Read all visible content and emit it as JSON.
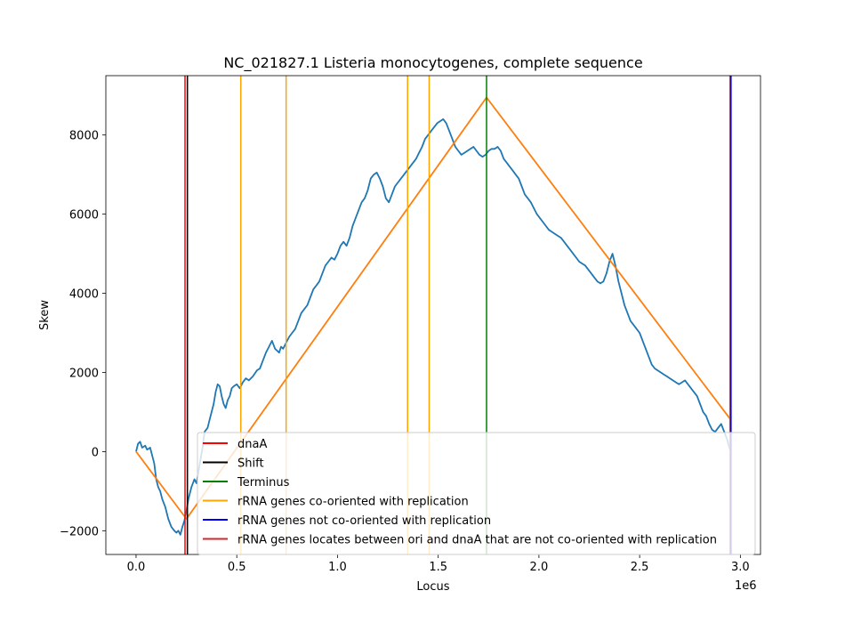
{
  "chart_data": {
    "type": "line",
    "title": "NC_021827.1 Listeria monocytogenes, complete sequence",
    "xlabel": "Locus",
    "ylabel": "Skew",
    "x_offset_label": "1e6",
    "xlim": [
      -150000,
      3100000
    ],
    "ylim": [
      -2600,
      9500
    ],
    "x_ticks": [
      0,
      500000,
      1000000,
      1500000,
      2000000,
      2500000,
      3000000
    ],
    "x_tick_labels": [
      "0.0",
      "0.5",
      "1.0",
      "1.5",
      "2.0",
      "2.5",
      "3.0"
    ],
    "y_ticks": [
      -2000,
      0,
      2000,
      4000,
      6000,
      8000
    ],
    "y_tick_labels": [
      "−2000",
      "0",
      "2000",
      "4000",
      "6000",
      "8000"
    ],
    "grid": false,
    "legend_position": "lower-right",
    "series": [
      {
        "color": "#1f77b4",
        "x": [
          0,
          10000,
          20000,
          30000,
          45000,
          55000,
          70000,
          80000,
          90000,
          100000,
          110000,
          120000,
          130000,
          145000,
          160000,
          175000,
          190000,
          200000,
          210000,
          220000,
          230000,
          240000,
          250000,
          260000,
          275000,
          290000,
          300000,
          310000,
          320000,
          330000,
          340000,
          355000,
          365000,
          375000,
          385000,
          395000,
          405000,
          415000,
          425000,
          435000,
          445000,
          455000,
          465000,
          475000,
          485000,
          500000,
          515000,
          530000,
          545000,
          560000,
          580000,
          600000,
          615000,
          630000,
          645000,
          660000,
          675000,
          690000,
          700000,
          710000,
          720000,
          730000,
          745000,
          760000,
          775000,
          790000,
          805000,
          820000,
          835000,
          850000,
          865000,
          880000,
          895000,
          910000,
          925000,
          940000,
          955000,
          970000,
          985000,
          1000000,
          1015000,
          1030000,
          1045000,
          1060000,
          1075000,
          1090000,
          1105000,
          1120000,
          1135000,
          1150000,
          1165000,
          1180000,
          1195000,
          1210000,
          1225000,
          1240000,
          1255000,
          1270000,
          1285000,
          1300000,
          1315000,
          1330000,
          1345000,
          1360000,
          1375000,
          1390000,
          1405000,
          1420000,
          1435000,
          1450000,
          1465000,
          1480000,
          1495000,
          1510000,
          1525000,
          1540000,
          1555000,
          1570000,
          1585000,
          1600000,
          1615000,
          1630000,
          1645000,
          1660000,
          1675000,
          1690000,
          1705000,
          1720000,
          1735000,
          1750000,
          1765000,
          1780000,
          1795000,
          1810000,
          1825000,
          1840000,
          1855000,
          1870000,
          1885000,
          1900000,
          1915000,
          1930000,
          1945000,
          1960000,
          1975000,
          1990000,
          2005000,
          2020000,
          2035000,
          2050000,
          2065000,
          2080000,
          2095000,
          2110000,
          2125000,
          2140000,
          2155000,
          2170000,
          2185000,
          2200000,
          2215000,
          2230000,
          2245000,
          2260000,
          2275000,
          2290000,
          2305000,
          2320000,
          2335000,
          2350000,
          2365000,
          2380000,
          2395000,
          2410000,
          2425000,
          2440000,
          2455000,
          2470000,
          2485000,
          2500000,
          2515000,
          2530000,
          2545000,
          2560000,
          2575000,
          2590000,
          2605000,
          2620000,
          2635000,
          2650000,
          2665000,
          2680000,
          2695000,
          2710000,
          2725000,
          2740000,
          2755000,
          2770000,
          2785000,
          2800000,
          2815000,
          2830000,
          2845000,
          2860000,
          2875000,
          2890000,
          2905000,
          2920000,
          2935000,
          2945000,
          2953000
        ],
        "y": [
          0,
          200,
          250,
          100,
          150,
          50,
          100,
          -100,
          -300,
          -700,
          -900,
          -1000,
          -1200,
          -1400,
          -1700,
          -1900,
          -2000,
          -2050,
          -2000,
          -2100,
          -1900,
          -1750,
          -1500,
          -1200,
          -900,
          -700,
          -800,
          -500,
          -200,
          100,
          500,
          600,
          800,
          1000,
          1200,
          1500,
          1700,
          1650,
          1400,
          1200,
          1100,
          1300,
          1400,
          1600,
          1650,
          1700,
          1600,
          1750,
          1850,
          1800,
          1900,
          2050,
          2100,
          2300,
          2500,
          2650,
          2800,
          2600,
          2550,
          2500,
          2650,
          2600,
          2750,
          2900,
          3000,
          3100,
          3300,
          3500,
          3600,
          3700,
          3900,
          4100,
          4200,
          4300,
          4500,
          4700,
          4800,
          4900,
          4850,
          5000,
          5200,
          5300,
          5200,
          5400,
          5700,
          5900,
          6100,
          6300,
          6400,
          6600,
          6900,
          7000,
          7050,
          6900,
          6700,
          6400,
          6300,
          6500,
          6700,
          6800,
          6900,
          7000,
          7100,
          7200,
          7300,
          7400,
          7550,
          7700,
          7900,
          8000,
          8100,
          8200,
          8300,
          8350,
          8400,
          8300,
          8100,
          7900,
          7700,
          7600,
          7500,
          7550,
          7600,
          7650,
          7700,
          7600,
          7500,
          7450,
          7500,
          7600,
          7650,
          7650,
          7700,
          7600,
          7400,
          7300,
          7200,
          7100,
          7000,
          6900,
          6700,
          6500,
          6400,
          6300,
          6150,
          6000,
          5900,
          5800,
          5700,
          5600,
          5550,
          5500,
          5450,
          5400,
          5300,
          5200,
          5100,
          5000,
          4900,
          4800,
          4750,
          4700,
          4600,
          4500,
          4400,
          4300,
          4250,
          4300,
          4500,
          4800,
          5000,
          4700,
          4300,
          4000,
          3700,
          3500,
          3300,
          3200,
          3100,
          3000,
          2800,
          2600,
          2400,
          2200,
          2100,
          2050,
          2000,
          1950,
          1900,
          1850,
          1800,
          1750,
          1700,
          1750,
          1800,
          1700,
          1600,
          1500,
          1400,
          1200,
          1000,
          900,
          700,
          550,
          500,
          600,
          700,
          500,
          300,
          100,
          0
        ]
      },
      {
        "color": "#ff7f0e",
        "x": [
          0,
          250000,
          1740000,
          2953000
        ],
        "y": [
          0,
          -1700,
          8950,
          800
        ]
      }
    ],
    "vertical_lines": [
      {
        "x": 243000,
        "color": "#ff0000",
        "legend": "dnaA"
      },
      {
        "x": 255000,
        "color": "#000000",
        "legend": "Shift"
      },
      {
        "x": 1740000,
        "color": "#008000",
        "legend": "Terminus"
      },
      {
        "x": 520000,
        "color": "#ffa500",
        "legend": "rRNA genes co-oriented with replication"
      },
      {
        "x": 745000,
        "color": "#ffa500"
      },
      {
        "x": 1348000,
        "color": "#ffa500"
      },
      {
        "x": 1455000,
        "color": "#ffa500"
      },
      {
        "x": 2948000,
        "color": "#ffa500"
      },
      {
        "x": 2951000,
        "color": "#0000ff",
        "legend": "rRNA genes not co-oriented with replication"
      },
      {
        "x": 2953500,
        "color": "#0000ff"
      }
    ],
    "legend": [
      {
        "label": "dnaA",
        "color": "#ff0000"
      },
      {
        "label": "Shift",
        "color": "#000000"
      },
      {
        "label": "Terminus",
        "color": "#008000"
      },
      {
        "label": "rRNA genes co-oriented with replication",
        "color": "#ffa500"
      },
      {
        "label": "rRNA genes not co-oriented with replication",
        "color": "#0000ff"
      },
      {
        "label": "rRNA genes locates between ori and dnaA that are not co-oriented with replication",
        "color": "#d62728"
      }
    ]
  }
}
